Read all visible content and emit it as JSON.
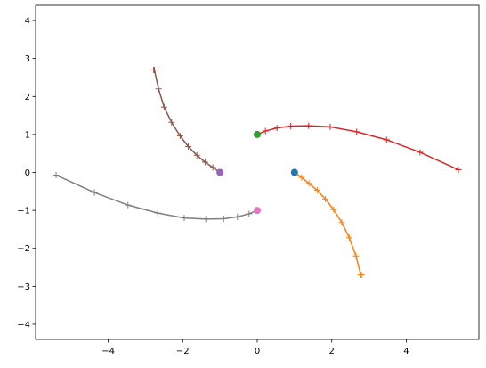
{
  "chart_data": {
    "type": "line",
    "title": "",
    "xlabel": "",
    "ylabel": "",
    "xlim": [
      -5.95,
      5.95
    ],
    "ylim": [
      -4.4,
      4.4
    ],
    "grid": false,
    "legend": "none",
    "xticks": [
      -4,
      -2,
      0,
      2,
      4
    ],
    "xtick_labels": [
      "−4",
      "−2",
      "0",
      "2",
      "4"
    ],
    "yticks": [
      -4,
      -3,
      -2,
      -1,
      0,
      1,
      2,
      3,
      4
    ],
    "ytick_labels": [
      "−4",
      "−3",
      "−2",
      "−1",
      "0",
      "1",
      "2",
      "3",
      "4"
    ],
    "start_points": [
      {
        "x": 1,
        "y": 0,
        "color": "#1f77b4"
      },
      {
        "x": 0,
        "y": 1,
        "color": "#2ca02c"
      },
      {
        "x": -1,
        "y": 0,
        "color": "#9467bd"
      },
      {
        "x": 0,
        "y": -1,
        "color": "#e377c2"
      }
    ],
    "series": [
      {
        "color": "#ff7f0e",
        "marker": "+",
        "x": [
          1.0,
          1.19,
          1.39,
          1.61,
          1.83,
          2.05,
          2.27,
          2.47,
          2.65,
          2.78,
          2.8
        ],
        "y": [
          0.0,
          -0.13,
          -0.29,
          -0.47,
          -0.7,
          -0.98,
          -1.32,
          -1.72,
          -2.2,
          -2.7,
          -2.7
        ]
      },
      {
        "color": "#d62728",
        "marker": "+",
        "x": [
          0.0,
          0.22,
          0.53,
          0.9,
          1.38,
          1.96,
          2.67,
          3.47,
          4.37,
          5.4
        ],
        "y": [
          1.0,
          1.09,
          1.17,
          1.22,
          1.23,
          1.2,
          1.07,
          0.86,
          0.53,
          0.07
        ]
      },
      {
        "color": "#8c564b",
        "marker": "+",
        "x": [
          -1.0,
          -1.19,
          -1.4,
          -1.62,
          -1.85,
          -2.07,
          -2.3,
          -2.5,
          -2.65,
          -2.76,
          -2.78
        ],
        "y": [
          0.0,
          0.13,
          0.27,
          0.45,
          0.68,
          0.96,
          1.32,
          1.72,
          2.2,
          2.7,
          2.7
        ]
      },
      {
        "color": "#7f7f7f",
        "marker": "+",
        "x": [
          0.0,
          -0.22,
          -0.53,
          -0.9,
          -1.38,
          -1.96,
          -2.67,
          -3.47,
          -4.37,
          -5.4
        ],
        "y": [
          -1.0,
          -1.09,
          -1.17,
          -1.22,
          -1.23,
          -1.2,
          -1.07,
          -0.86,
          -0.53,
          -0.07
        ]
      }
    ]
  }
}
